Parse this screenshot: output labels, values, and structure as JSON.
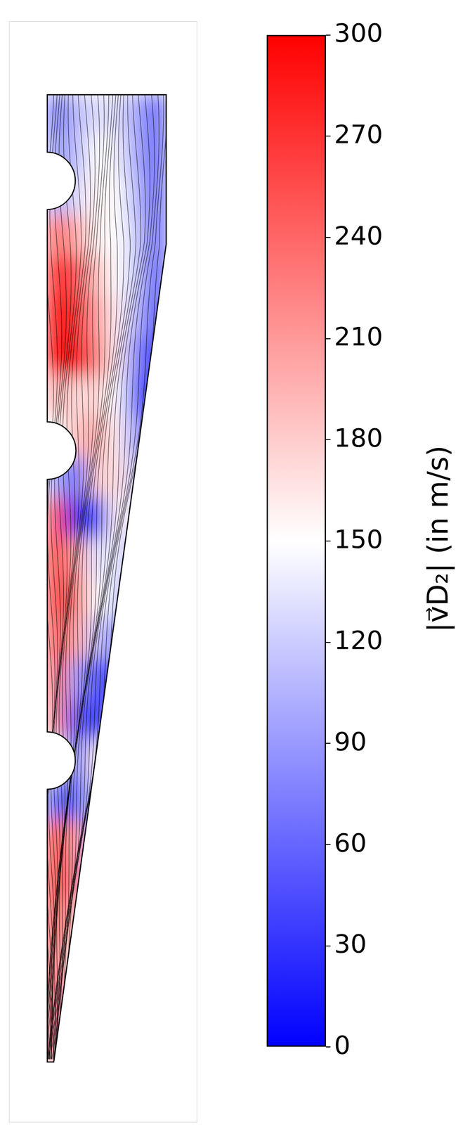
{
  "chart_data": {
    "type": "heatmap",
    "colorbar": {
      "label": "|v⃗D₂| (in m/s)",
      "range": [
        0,
        300
      ],
      "ticks": [
        0,
        30,
        60,
        90,
        120,
        150,
        180,
        210,
        240,
        270,
        300
      ],
      "colors": [
        "#0000ff",
        "#ffffff",
        "#ff0000"
      ]
    },
    "cells": [
      [
        70,
        110,
        130,
        130,
        100,
        60
      ],
      [
        90,
        110,
        150,
        140,
        100,
        60
      ],
      [
        100,
        130,
        160,
        150,
        110,
        60
      ],
      [
        240,
        200,
        160,
        150,
        120,
        60
      ],
      [
        280,
        250,
        190,
        150,
        120,
        50
      ],
      [
        290,
        270,
        210,
        160,
        110,
        40
      ],
      [
        290,
        280,
        230,
        160,
        80,
        20
      ],
      [
        200,
        170,
        180,
        150,
        60,
        20
      ],
      [
        150,
        190,
        200,
        160,
        100,
        20
      ],
      [
        100,
        60,
        180,
        170,
        120,
        null
      ],
      [
        260,
        40,
        40,
        160,
        130,
        null
      ],
      [
        280,
        200,
        130,
        140,
        100,
        null
      ],
      [
        270,
        230,
        150,
        130,
        60,
        null
      ],
      [
        260,
        200,
        120,
        80,
        null,
        null
      ],
      [
        240,
        100,
        40,
        60,
        null,
        null
      ],
      [
        220,
        60,
        30,
        80,
        null,
        null
      ],
      [
        150,
        60,
        160,
        null,
        null,
        null
      ],
      [
        60,
        60,
        120,
        null,
        null,
        null
      ],
      [
        270,
        200,
        80,
        null,
        null,
        null
      ],
      [
        280,
        210,
        60,
        null,
        null,
        null
      ],
      [
        270,
        180,
        null,
        null,
        null,
        null
      ],
      [
        260,
        150,
        null,
        null,
        null,
        null
      ],
      [
        260,
        120,
        null,
        null,
        null,
        null
      ],
      [
        240,
        100,
        null,
        null,
        null,
        null
      ]
    ]
  }
}
